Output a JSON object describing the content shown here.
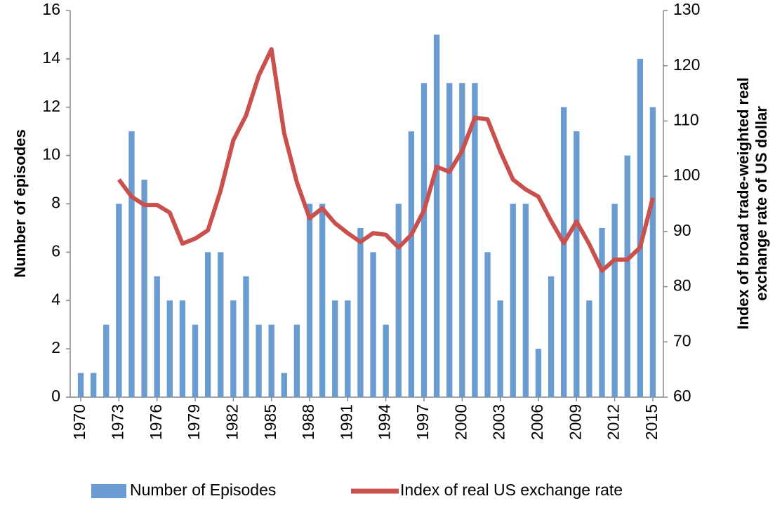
{
  "chart_data": {
    "type": "bar-line",
    "ylabel": "Number of episodes",
    "y2label": [
      "Index of broad trade-weighted real",
      "exchange rate of US dollar"
    ],
    "x": [
      1970,
      1971,
      1972,
      1973,
      1974,
      1975,
      1976,
      1977,
      1978,
      1979,
      1980,
      1981,
      1982,
      1983,
      1984,
      1985,
      1986,
      1987,
      1988,
      1989,
      1990,
      1991,
      1992,
      1993,
      1994,
      1995,
      1996,
      1997,
      1998,
      1999,
      2000,
      2001,
      2002,
      2003,
      2004,
      2005,
      2006,
      2007,
      2008,
      2009,
      2010,
      2011,
      2012,
      2013,
      2014,
      2015
    ],
    "xlim": [
      1969.5,
      2015.5
    ],
    "xticks": [
      1970,
      1973,
      1976,
      1979,
      1982,
      1985,
      1988,
      1991,
      1994,
      1997,
      2000,
      2003,
      2006,
      2009,
      2012,
      2015
    ],
    "ylim": [
      0,
      16
    ],
    "yticks": [
      0,
      2,
      4,
      6,
      8,
      10,
      12,
      14,
      16
    ],
    "y2lim": [
      60,
      130
    ],
    "y2ticks": [
      60,
      70,
      80,
      90,
      100,
      110,
      120,
      130
    ],
    "grid": false,
    "legend": "bottom",
    "series": [
      {
        "name": "Number of Episodes",
        "type": "bar",
        "color": "#6a9bd1",
        "values": [
          1,
          1,
          3,
          8,
          11,
          9,
          5,
          4,
          4,
          3,
          6,
          6,
          4,
          5,
          3,
          3,
          1,
          3,
          8,
          8,
          4,
          4,
          7,
          6,
          3,
          8,
          11,
          13,
          15,
          13,
          13,
          13,
          6,
          4,
          8,
          8,
          2,
          5,
          12,
          11,
          4,
          7,
          8,
          10,
          14,
          12
        ]
      },
      {
        "name": "Index of real US exchange rate",
        "type": "line",
        "axis": "y2",
        "color": "#c9504d",
        "values": [
          null,
          null,
          null,
          99.4,
          96.3,
          94.8,
          94.8,
          93.4,
          87.8,
          88.7,
          90.2,
          97.4,
          106.5,
          111,
          118.2,
          123,
          107.8,
          98.9,
          92.4,
          94.2,
          91.5,
          89.7,
          88.1,
          89.7,
          89.4,
          87.1,
          89.4,
          93.8,
          101.7,
          100.8,
          104.6,
          110.6,
          110.3,
          104.5,
          99.4,
          97.6,
          96.3,
          91.9,
          87.9,
          91.8,
          87.7,
          82.9,
          84.9,
          84.9,
          87.1,
          96.1
        ]
      }
    ]
  }
}
